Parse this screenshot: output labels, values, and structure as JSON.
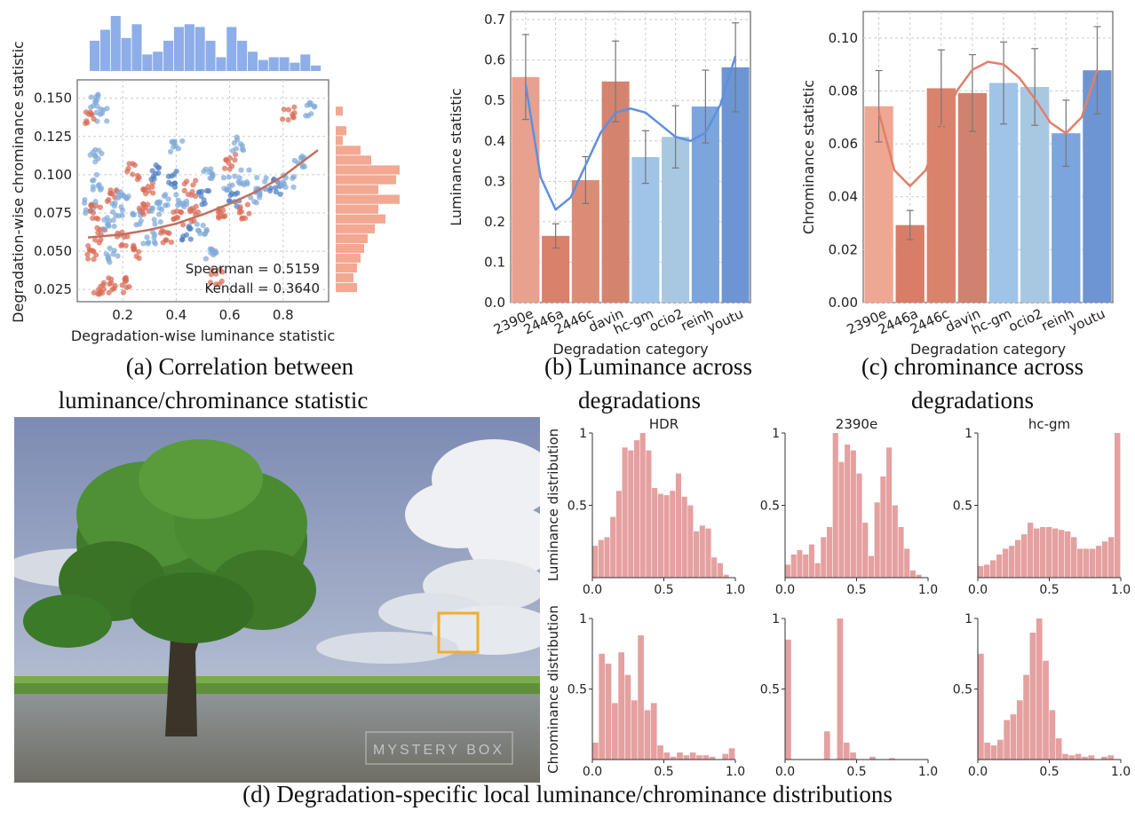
{
  "captions": {
    "a_line1": "(a) Correlation between",
    "a_line2": "luminance/chrominance statistic",
    "b_line1": "(b) Luminance across",
    "b_line2": "degradations",
    "c_line1": "(c) chrominance across",
    "c_line2": "degradations",
    "d": "(d) Degradation-specific local luminance/chrominance distributions"
  },
  "photo": {
    "watermark": "MYSTERY BOX",
    "highlight_color": "#f2ad2e"
  },
  "chart_data": [
    {
      "id": "a",
      "type": "scatter",
      "title": "",
      "xlabel": "Degradation-wise luminance statistic",
      "ylabel": "Degradation-wise chrominance statistic",
      "xlim": [
        0.03,
        0.97
      ],
      "ylim": [
        0.017,
        0.162
      ],
      "xticks": [
        0.2,
        0.4,
        0.6,
        0.8
      ],
      "yticks": [
        0.025,
        0.05,
        0.075,
        0.1,
        0.125,
        0.15
      ],
      "ytick_labels": [
        "0.025",
        "0.050",
        "0.075",
        "0.100",
        "0.125",
        "0.150"
      ],
      "grid": true,
      "annotations": [
        "Spearman = 0.5159",
        "Kendall = 0.3640"
      ],
      "colors": {
        "red": "#d96b55",
        "blue": "#7fa9d8",
        "dark_blue": "#4f7fc4",
        "fit": "#c07060",
        "hist_top": "#8eaeea",
        "hist_right": "#f3a892"
      },
      "fit_curve": {
        "x": [
          0.07,
          0.2,
          0.3,
          0.4,
          0.5,
          0.6,
          0.7,
          0.8,
          0.93
        ],
        "y": [
          0.059,
          0.061,
          0.064,
          0.068,
          0.074,
          0.081,
          0.089,
          0.099,
          0.116
        ]
      },
      "clusters": [
        {
          "x": 0.1,
          "y": 0.148,
          "c": "blue"
        },
        {
          "x": 0.12,
          "y": 0.14,
          "c": "blue"
        },
        {
          "x": 0.08,
          "y": 0.138,
          "c": "red"
        },
        {
          "x": 0.1,
          "y": 0.112,
          "c": "blue"
        },
        {
          "x": 0.1,
          "y": 0.095,
          "c": "blue"
        },
        {
          "x": 0.08,
          "y": 0.08,
          "c": "blue"
        },
        {
          "x": 0.1,
          "y": 0.075,
          "c": "red"
        },
        {
          "x": 0.12,
          "y": 0.06,
          "c": "red"
        },
        {
          "x": 0.09,
          "y": 0.049,
          "c": "red"
        },
        {
          "x": 0.11,
          "y": 0.027,
          "c": "red"
        },
        {
          "x": 0.15,
          "y": 0.028,
          "c": "red"
        },
        {
          "x": 0.16,
          "y": 0.047,
          "c": "blue"
        },
        {
          "x": 0.15,
          "y": 0.067,
          "c": "blue"
        },
        {
          "x": 0.16,
          "y": 0.085,
          "c": "red"
        },
        {
          "x": 0.18,
          "y": 0.078,
          "c": "blue"
        },
        {
          "x": 0.2,
          "y": 0.087,
          "c": "blue"
        },
        {
          "x": 0.2,
          "y": 0.058,
          "c": "red"
        },
        {
          "x": 0.21,
          "y": 0.028,
          "c": "red"
        },
        {
          "x": 0.24,
          "y": 0.102,
          "c": "red"
        },
        {
          "x": 0.26,
          "y": 0.072,
          "c": "blue"
        },
        {
          "x": 0.26,
          "y": 0.05,
          "c": "red"
        },
        {
          "x": 0.28,
          "y": 0.078,
          "c": "red"
        },
        {
          "x": 0.3,
          "y": 0.09,
          "c": "red"
        },
        {
          "x": 0.3,
          "y": 0.058,
          "c": "blue"
        },
        {
          "x": 0.33,
          "y": 0.102,
          "c": "dark_blue"
        },
        {
          "x": 0.33,
          "y": 0.073,
          "c": "blue"
        },
        {
          "x": 0.35,
          "y": 0.082,
          "c": "blue"
        },
        {
          "x": 0.36,
          "y": 0.06,
          "c": "red"
        },
        {
          "x": 0.38,
          "y": 0.097,
          "c": "dark_blue"
        },
        {
          "x": 0.4,
          "y": 0.118,
          "c": "blue"
        },
        {
          "x": 0.41,
          "y": 0.072,
          "c": "red"
        },
        {
          "x": 0.42,
          "y": 0.083,
          "c": "blue"
        },
        {
          "x": 0.45,
          "y": 0.091,
          "c": "red"
        },
        {
          "x": 0.44,
          "y": 0.061,
          "c": "dark_blue"
        },
        {
          "x": 0.47,
          "y": 0.074,
          "c": "red"
        },
        {
          "x": 0.5,
          "y": 0.085,
          "c": "dark_blue"
        },
        {
          "x": 0.5,
          "y": 0.066,
          "c": "blue"
        },
        {
          "x": 0.52,
          "y": 0.1,
          "c": "blue"
        },
        {
          "x": 0.53,
          "y": 0.048,
          "c": "blue"
        },
        {
          "x": 0.55,
          "y": 0.033,
          "c": "red"
        },
        {
          "x": 0.57,
          "y": 0.073,
          "c": "red"
        },
        {
          "x": 0.6,
          "y": 0.095,
          "c": "blue"
        },
        {
          "x": 0.6,
          "y": 0.108,
          "c": "red"
        },
        {
          "x": 0.62,
          "y": 0.084,
          "c": "dark_blue"
        },
        {
          "x": 0.63,
          "y": 0.12,
          "c": "blue"
        },
        {
          "x": 0.65,
          "y": 0.098,
          "c": "blue"
        },
        {
          "x": 0.66,
          "y": 0.076,
          "c": "red"
        },
        {
          "x": 0.69,
          "y": 0.086,
          "c": "blue"
        },
        {
          "x": 0.72,
          "y": 0.093,
          "c": "blue"
        },
        {
          "x": 0.77,
          "y": 0.092,
          "c": "dark_blue"
        },
        {
          "x": 0.82,
          "y": 0.095,
          "c": "blue"
        },
        {
          "x": 0.82,
          "y": 0.14,
          "c": "red"
        },
        {
          "x": 0.86,
          "y": 0.108,
          "c": "blue"
        },
        {
          "x": 0.9,
          "y": 0.142,
          "c": "blue"
        }
      ],
      "hist_top": [
        0.55,
        0.75,
        1.0,
        0.6,
        0.85,
        0.3,
        0.35,
        0.55,
        0.8,
        0.85,
        0.8,
        0.55,
        0.25,
        0.8,
        0.55,
        0.35,
        0.2,
        0.25,
        0.25,
        0.15,
        0.3,
        0.1
      ],
      "hist_right": [
        0.0,
        0.0,
        0.1,
        0.0,
        0.15,
        0.1,
        0.35,
        0.5,
        0.9,
        0.85,
        0.6,
        0.9,
        0.6,
        0.7,
        0.55,
        0.45,
        0.4,
        0.35,
        0.3,
        0.25,
        0.3
      ]
    },
    {
      "id": "b",
      "type": "bar",
      "title": "",
      "xlabel": "Degradation category",
      "ylabel": "Luminance statistic",
      "ylim": [
        0,
        0.72
      ],
      "yticks": [
        0.0,
        0.1,
        0.2,
        0.3,
        0.4,
        0.5,
        0.6,
        0.7
      ],
      "ytick_labels": [
        "0.0",
        "0.1",
        "0.2",
        "0.3",
        "0.4",
        "0.5",
        "0.6",
        "0.7"
      ],
      "grid": true,
      "categories": [
        "2390e",
        "2446a",
        "2446c",
        "davin",
        "hc-gm",
        "ocio2",
        "reinh",
        "youtu"
      ],
      "values": [
        0.558,
        0.165,
        0.303,
        0.547,
        0.36,
        0.41,
        0.485,
        0.582
      ],
      "errors": [
        0.105,
        0.03,
        0.058,
        0.1,
        0.065,
        0.077,
        0.09,
        0.11
      ],
      "bar_colors": [
        "#e8a18e",
        "#d9816b",
        "#dc8c76",
        "#d4846e",
        "#9fc4e8",
        "#a8c8e2",
        "#7ba5dc",
        "#6d95d3"
      ],
      "curve_color": "#5e8fe0",
      "curve": {
        "x": [
          0,
          0.5,
          1,
          1.5,
          2,
          2.5,
          3,
          3.5,
          4,
          4.5,
          5,
          5.5,
          6,
          6.5,
          7
        ],
        "y": [
          0.54,
          0.31,
          0.23,
          0.26,
          0.34,
          0.42,
          0.47,
          0.48,
          0.47,
          0.44,
          0.41,
          0.4,
          0.42,
          0.49,
          0.61
        ]
      }
    },
    {
      "id": "c",
      "type": "bar",
      "title": "",
      "xlabel": "Degradation category",
      "ylabel": "Chrominance statistic",
      "ylim": [
        0,
        0.11
      ],
      "yticks": [
        0.0,
        0.02,
        0.04,
        0.06,
        0.08,
        0.1
      ],
      "ytick_labels": [
        "0.00",
        "0.02",
        "0.04",
        "0.06",
        "0.08",
        "0.10"
      ],
      "grid": true,
      "categories": [
        "2390e",
        "2446a",
        "2446c",
        "davin",
        "hc-gm",
        "ocio2",
        "reinh",
        "youtu"
      ],
      "values": [
        0.0742,
        0.0293,
        0.081,
        0.0792,
        0.083,
        0.0815,
        0.064,
        0.0878
      ],
      "errors": [
        0.0135,
        0.0055,
        0.0145,
        0.0145,
        0.0155,
        0.0145,
        0.0125,
        0.0165
      ],
      "bar_colors": [
        "#eea792",
        "#d97d68",
        "#d9826c",
        "#cf836e",
        "#9fc4e8",
        "#a8c8e2",
        "#7ba5dc",
        "#6d95d3"
      ],
      "curve_color": "#e0806a",
      "curve": {
        "x": [
          0,
          0.5,
          1,
          1.5,
          2,
          2.5,
          3,
          3.5,
          4,
          4.5,
          5,
          5.5,
          6,
          6.5,
          7
        ],
        "y": [
          0.072,
          0.05,
          0.044,
          0.05,
          0.066,
          0.08,
          0.088,
          0.091,
          0.09,
          0.085,
          0.077,
          0.068,
          0.064,
          0.07,
          0.088
        ]
      }
    },
    {
      "id": "d",
      "type": "bar",
      "title": "",
      "panel_titles": [
        "HDR",
        "2390e",
        "hc-gm"
      ],
      "row_labels": [
        "Luminance distribution",
        "Chrominance distribution"
      ],
      "bar_color": "#e5a0a0",
      "xticks": [
        "0.0",
        "0.5",
        "1.0"
      ],
      "yticks": [
        "0.5",
        "1"
      ],
      "panels": [
        {
          "row": 0,
          "col": 0,
          "values": [
            0.22,
            0.26,
            0.28,
            0.42,
            0.6,
            0.9,
            0.88,
            0.95,
            1.0,
            0.88,
            0.62,
            0.58,
            0.57,
            0.6,
            0.72,
            0.56,
            0.5,
            0.32,
            0.36,
            0.34,
            0.14,
            0.1,
            0.02,
            0.0
          ]
        },
        {
          "row": 0,
          "col": 1,
          "values": [
            0.09,
            0.16,
            0.19,
            0.16,
            0.23,
            0.1,
            0.28,
            0.35,
            1.0,
            0.8,
            0.92,
            0.88,
            0.72,
            0.38,
            0.15,
            0.52,
            0.7,
            0.9,
            0.5,
            0.35,
            0.2,
            0.05,
            0.02,
            0.0
          ]
        },
        {
          "row": 0,
          "col": 2,
          "values": [
            0.08,
            0.09,
            0.12,
            0.16,
            0.2,
            0.22,
            0.26,
            0.3,
            0.38,
            0.34,
            0.35,
            0.35,
            0.34,
            0.33,
            0.32,
            0.28,
            0.2,
            0.2,
            0.2,
            0.22,
            0.25,
            0.28,
            1.0
          ]
        },
        {
          "row": 1,
          "col": 0,
          "values": [
            0.12,
            0.75,
            0.68,
            0.4,
            0.76,
            0.6,
            0.42,
            0.88,
            0.35,
            0.4,
            0.1,
            0.05,
            0.02,
            0.05,
            0.03,
            0.05,
            0.03,
            0.03,
            0.02,
            0.0,
            0.04,
            0.08
          ]
        },
        {
          "row": 1,
          "col": 1,
          "values": [
            0.85,
            0.0,
            0.0,
            0.0,
            0.0,
            0.0,
            0.2,
            0.0,
            1.0,
            0.12,
            0.05,
            0.0,
            0.0,
            0.02,
            0.0,
            0.0,
            0.01,
            0.0,
            0.0,
            0.0,
            0.0,
            0.0
          ]
        },
        {
          "row": 1,
          "col": 2,
          "values": [
            0.75,
            0.12,
            0.1,
            0.14,
            0.28,
            0.32,
            0.42,
            0.6,
            0.9,
            1.0,
            0.7,
            0.35,
            0.15,
            0.04,
            0.03,
            0.04,
            0.02,
            0.03,
            0.0,
            0.02,
            0.03,
            0.0
          ]
        }
      ]
    }
  ]
}
